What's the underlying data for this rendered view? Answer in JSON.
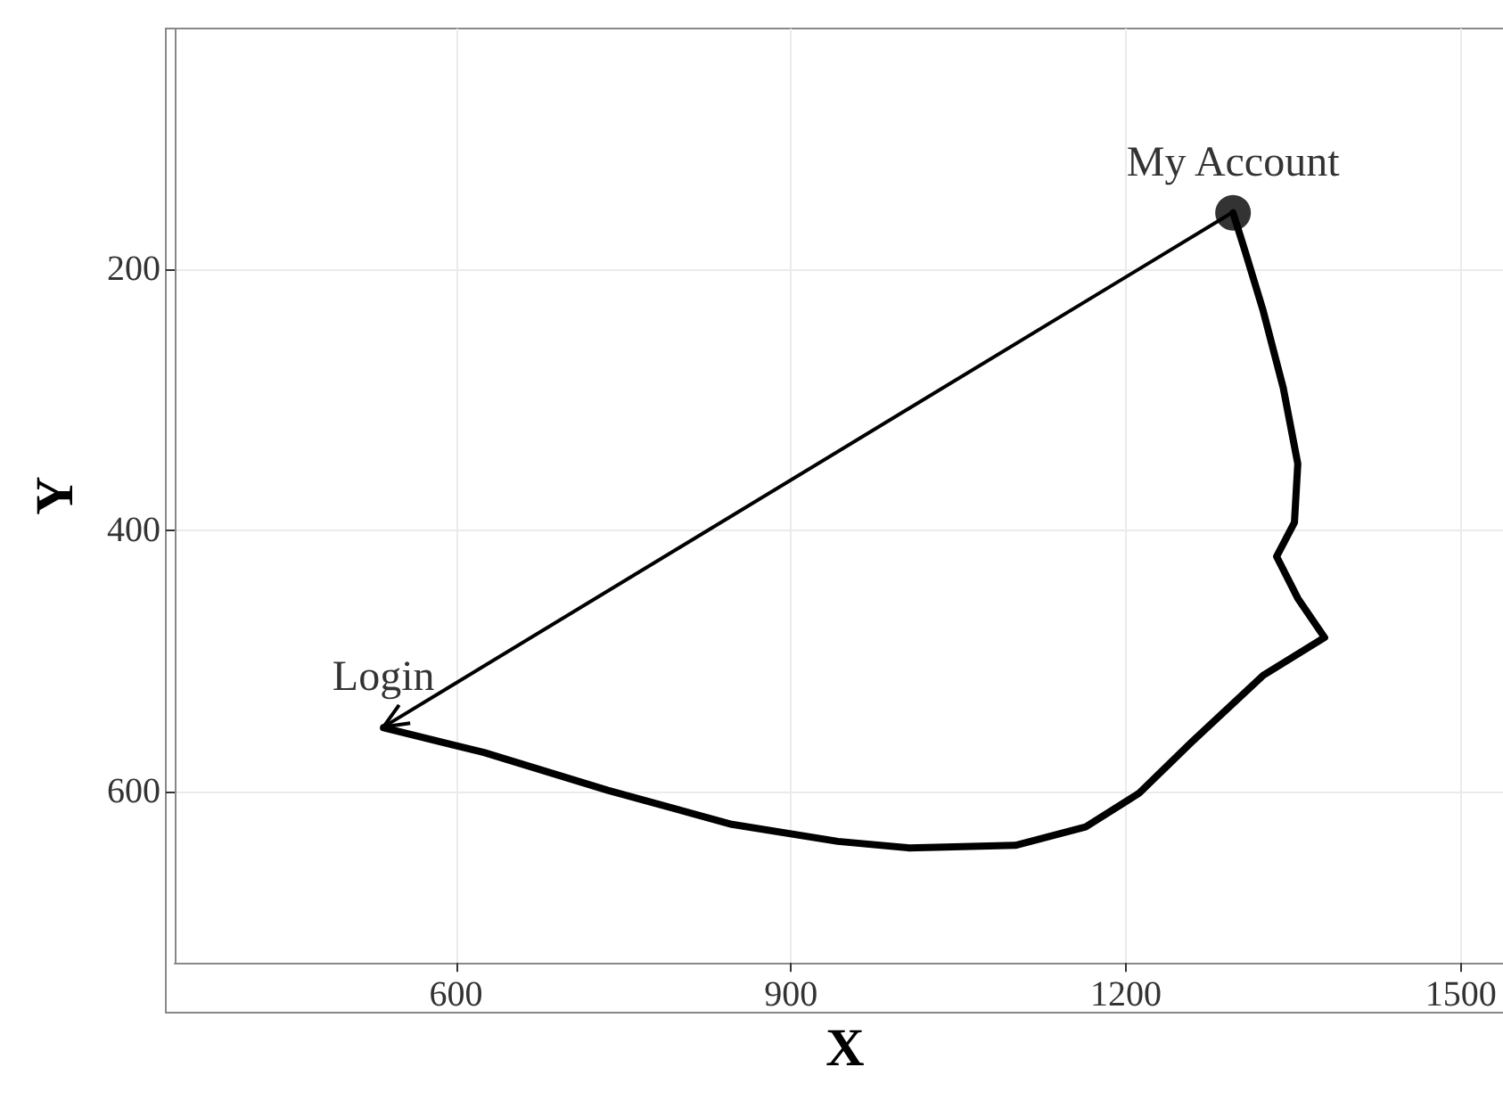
{
  "chart_data": {
    "type": "line",
    "xlabel": "X",
    "ylabel": "Y",
    "xlim": [
      348,
      1549
    ],
    "xticks": [
      600,
      900,
      1200,
      1500
    ],
    "ylim": [
      731,
      16
    ],
    "yticks": [
      200,
      400,
      600
    ],
    "grid": true,
    "series": [
      {
        "color": "#000000",
        "x": [
          535,
          625,
          736,
          847,
          942,
          1006,
          1101,
          1164,
          1212,
          1259,
          1323,
          1378,
          1354,
          1335,
          1351,
          1354,
          1341,
          1323,
          1307,
          1296
        ],
        "values": [
          551,
          570,
          599,
          625,
          638,
          643,
          641,
          627,
          601,
          562,
          511,
          482,
          452,
          420,
          394,
          349,
          291,
          232,
          187,
          157
        ]
      },
      {
        "type": "scatter",
        "color": "#000000",
        "marker": "circle",
        "x": [
          1296
        ],
        "values": [
          157
        ]
      }
    ],
    "annotations": [
      {
        "text": "My Account",
        "x": 1296,
        "y": 157
      },
      {
        "text": "Login",
        "x": 535,
        "y": 551
      }
    ]
  }
}
